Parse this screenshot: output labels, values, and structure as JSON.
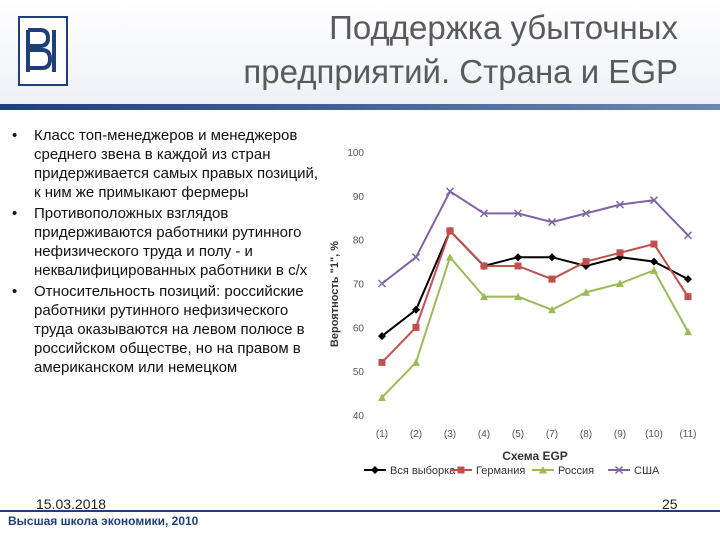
{
  "slide": {
    "title": "Поддержка убыточных\nпредприятий. Страна и EGP",
    "bullets": [
      "Класс топ-менеджеров и менеджеров среднего звена в каждой из стран придерживается самых правых позиций, к ним же примыкают фермеры",
      "Противоположных взглядов придерживаются работники рутинного нефизического труда и полу - и неквалифицированных работники в с/х",
      "Относительность позиций: российские работники рутинного нефизического труда оказываются на левом полюсе в российском обществе, но на правом в американском или немецком"
    ],
    "bullet_char": "•",
    "date": "15.03.2018",
    "page_number": "25",
    "footer": "Высшая школа экономики, 2010",
    "logo_icon": "hse-logo-icon",
    "colors": {
      "accent": "#1f3f78",
      "title": "#5a5a5a"
    }
  },
  "chart_data": {
    "type": "line",
    "ylabel": "Вероятность \"1\", %",
    "xlabel": "Схема EGP",
    "categories": [
      "(1)",
      "(2)",
      "(3)",
      "(4)",
      "(5)",
      "(7)",
      "(8)",
      "(9)",
      "(10)",
      "(11)"
    ],
    "yticks": [
      "40",
      "50",
      "60",
      "70",
      "80",
      "90",
      "100"
    ],
    "ylim": [
      40,
      100
    ],
    "grid": false,
    "legend_position": "bottom",
    "series": [
      {
        "name": "Вся выборка",
        "color": "#000000",
        "marker": "diamond",
        "values": [
          58,
          64,
          82,
          74,
          76,
          76,
          74,
          76,
          75,
          71
        ]
      },
      {
        "name": "Германия",
        "color": "#c0504d",
        "marker": "square",
        "values": [
          52,
          60,
          82,
          74,
          74,
          71,
          75,
          77,
          79,
          67
        ]
      },
      {
        "name": "Россия",
        "color": "#9bbb59",
        "marker": "triangle",
        "values": [
          44,
          52,
          76,
          67,
          67,
          64,
          68,
          70,
          73,
          59
        ]
      },
      {
        "name": "США",
        "color": "#8064a2",
        "marker": "cross",
        "values": [
          70,
          76,
          91,
          86,
          86,
          84,
          86,
          88,
          89,
          81
        ]
      }
    ]
  }
}
